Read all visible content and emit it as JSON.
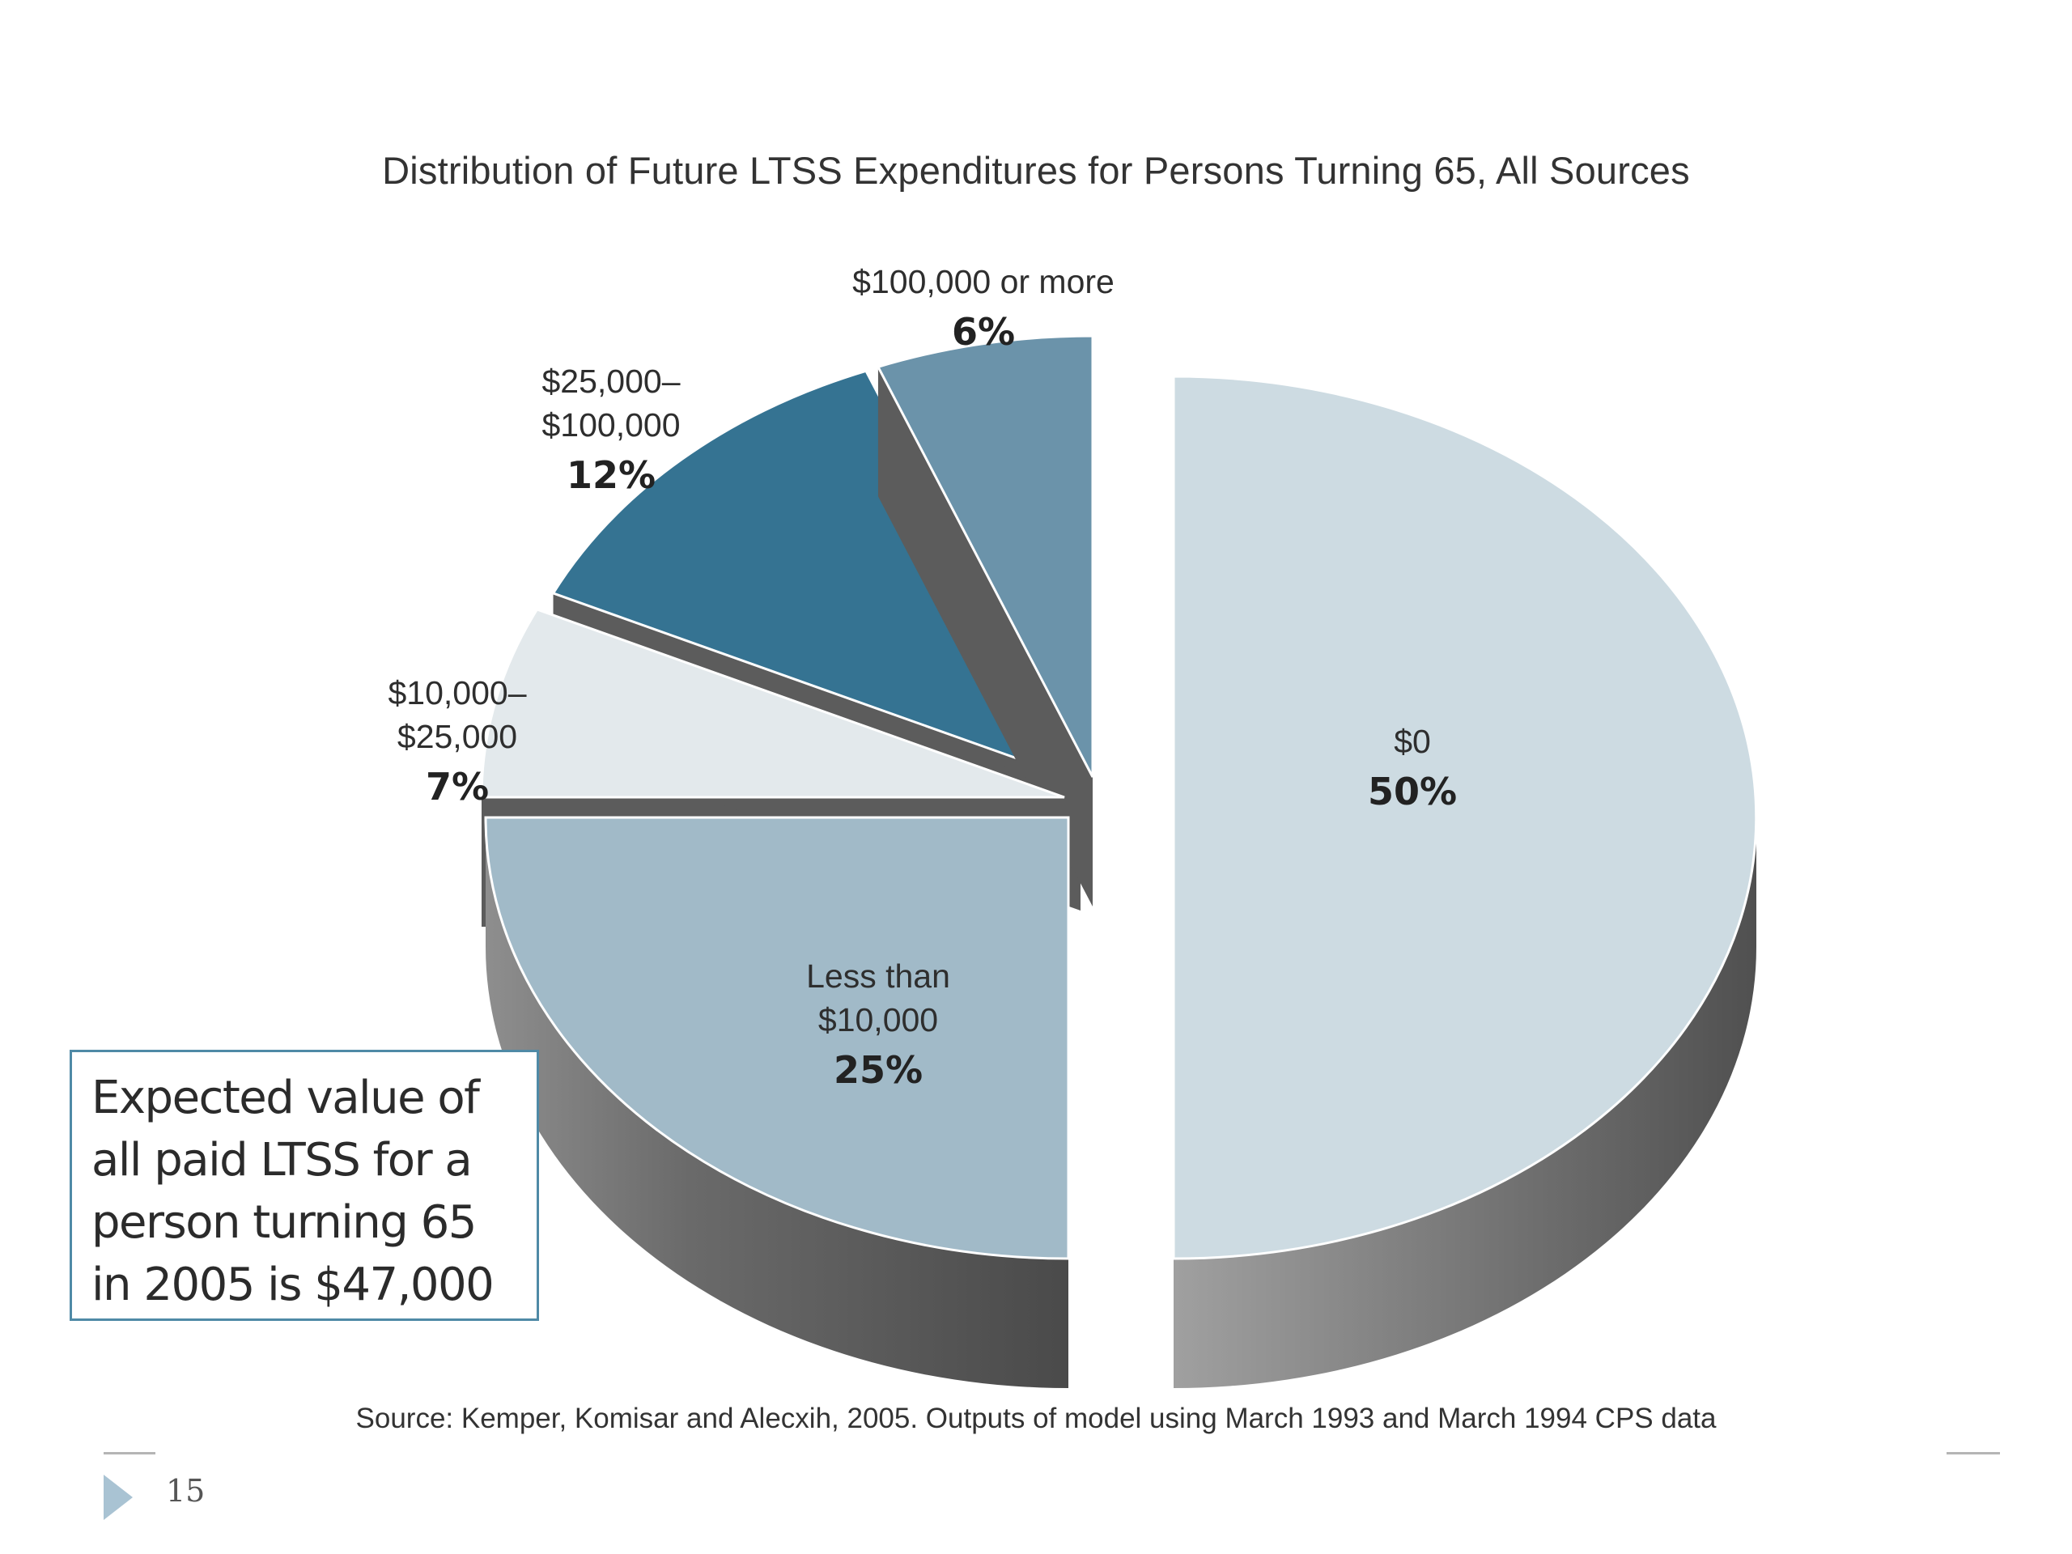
{
  "chart_data": {
    "type": "pie",
    "title": "Distribution of Future LTSS Expenditures for Persons Turning 65, All Sources",
    "slices": [
      {
        "label": [
          "$0"
        ],
        "value": 50,
        "value_label": "50%",
        "color": "#cddbe2"
      },
      {
        "label": [
          "Less than",
          "$10,000"
        ],
        "value": 25,
        "value_label": "25%",
        "color": "#a1bac8"
      },
      {
        "label": [
          "$10,000–",
          "$25,000"
        ],
        "value": 7,
        "value_label": "7%",
        "color": "#e3e9ec"
      },
      {
        "label": [
          "$25,000–",
          "$100,000"
        ],
        "value": 12,
        "value_label": "12%",
        "color": "#357392"
      },
      {
        "label": [
          "$100,000 or more"
        ],
        "value": 6,
        "value_label": "6%",
        "color": "#6b93aa"
      }
    ]
  },
  "callout": {
    "lines": [
      "Expected value of",
      "all paid LTSS for a",
      "person turning 65",
      "in 2005 is $47,000"
    ]
  },
  "source": "Source: Kemper, Komisar and Alecxih, 2005. Outputs of model using March 1993 and March 1994 CPS data",
  "page_number": "15"
}
